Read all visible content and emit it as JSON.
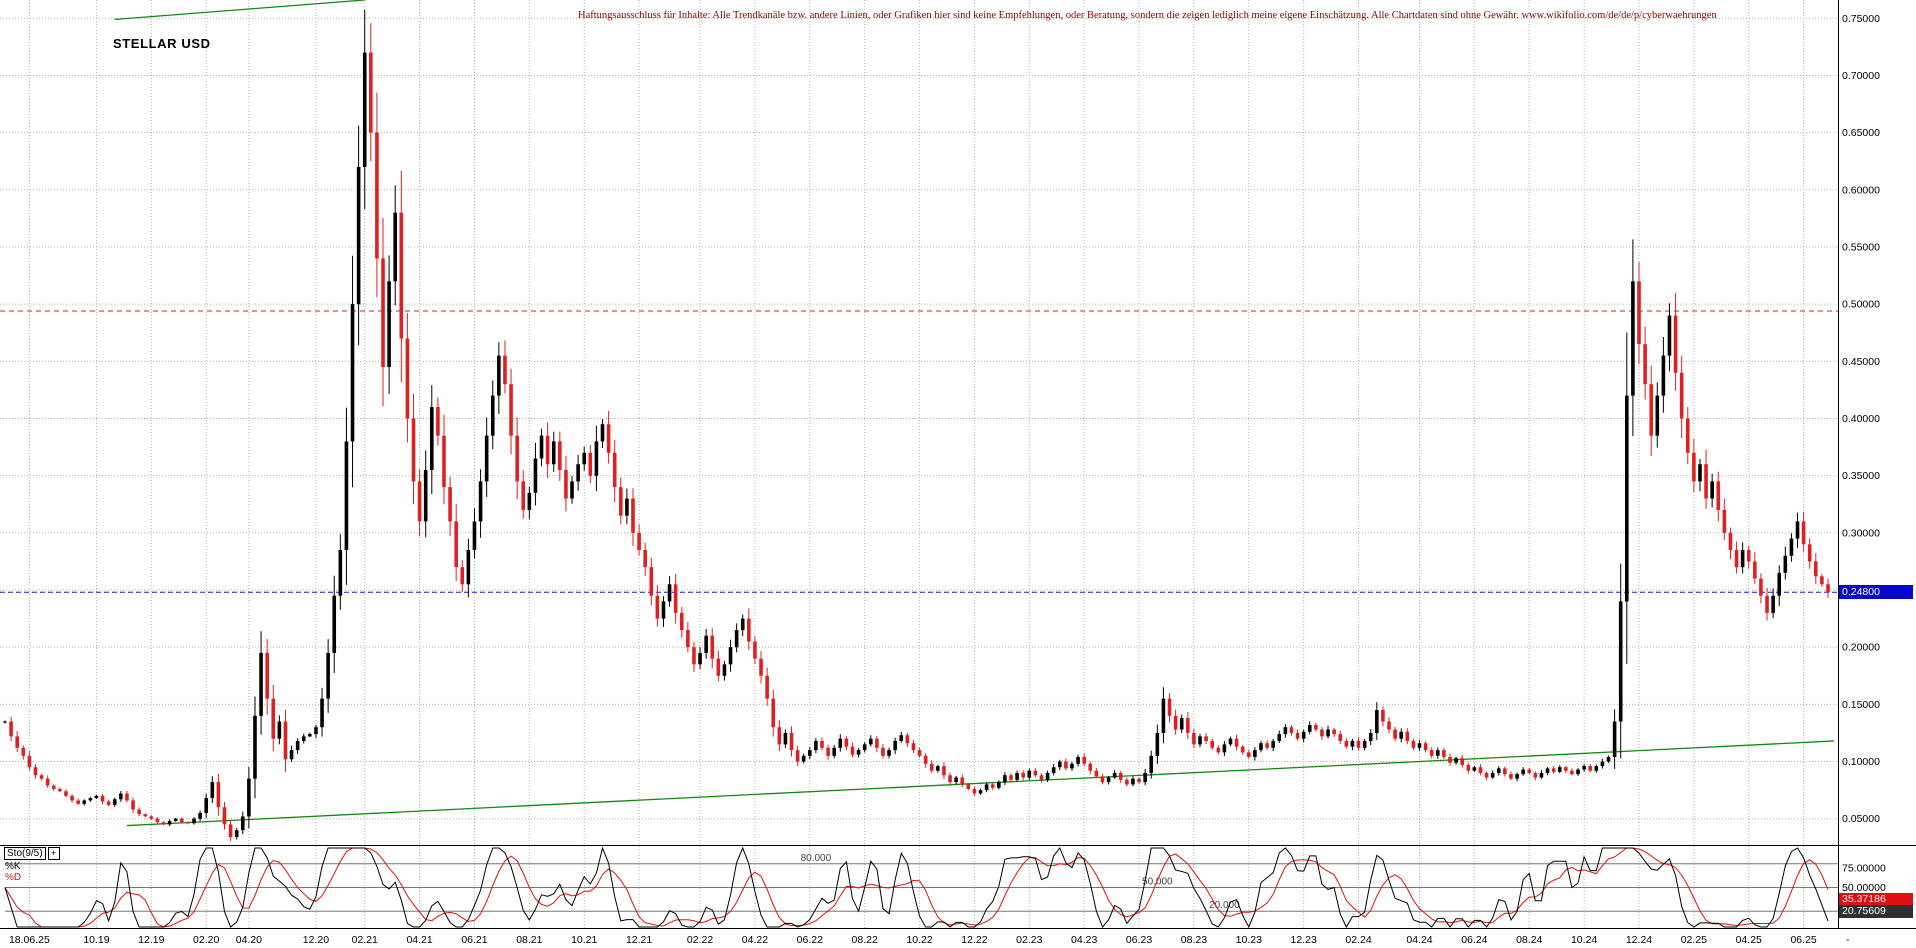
{
  "header": {
    "title": "STELLAR USD",
    "disclaimer": "Haftungsausschluss für Inhalte: Alle Trendkanäle bzw. andere Linien, oder Grafiken hier sind keine Empfehlungen, oder Beratung, sondern die zeigen lediglich meine eigene Einschätzung. Alle Chartdaten sind ohne Gewähr. www.wikifolio.com/de/de/p/cyberwaehrungen"
  },
  "colors": {
    "up_candle": "#000000",
    "down_candle": "#e02020",
    "grid": "#b3b3a6",
    "support_line": "#128912",
    "resistance_line": "#128912",
    "current_price_line": "#1515cc",
    "alert_line": "#c23000",
    "price_badge_bg": "#0808cc",
    "k_line": "#000000",
    "d_line": "#e01010",
    "k_badge_bg": "#303030",
    "d_badge_bg": "#e01010",
    "disclaimer_text": "#8b0000",
    "level_line": "#777777",
    "level_label": "#444444"
  },
  "chart_data": {
    "type": "candlestick",
    "title": "STELLAR USD",
    "y_range": [
      0.027,
      0.766
    ],
    "y_ticks": [
      {
        "value": 0.75,
        "label": "0.75000"
      },
      {
        "value": 0.7,
        "label": "0.70000"
      },
      {
        "value": 0.65,
        "label": "0.65000"
      },
      {
        "value": 0.6,
        "label": "0.60000"
      },
      {
        "value": 0.55,
        "label": "0.55000"
      },
      {
        "value": 0.5,
        "label": "0.50000"
      },
      {
        "value": 0.45,
        "label": "0.45000"
      },
      {
        "value": 0.4,
        "label": "0.40000"
      },
      {
        "value": 0.35,
        "label": "0.35000"
      },
      {
        "value": 0.3,
        "label": "0.30000"
      },
      {
        "value": 0.25,
        "label": "0.25000"
      },
      {
        "value": 0.2,
        "label": "0.20000"
      },
      {
        "value": 0.15,
        "label": "0.15000"
      },
      {
        "value": 0.1,
        "label": "0.10000"
      },
      {
        "value": 0.05,
        "label": "0.05000"
      }
    ],
    "x_ticks": [
      {
        "idx": 4,
        "label": "18.06.25"
      },
      {
        "idx": 15,
        "label": "10.19"
      },
      {
        "idx": 24,
        "label": "12.19"
      },
      {
        "idx": 33,
        "label": "02.20"
      },
      {
        "idx": 40,
        "label": "04.20"
      },
      {
        "idx": 51,
        "label": "12.20"
      },
      {
        "idx": 59,
        "label": "02.21"
      },
      {
        "idx": 68,
        "label": "04.21"
      },
      {
        "idx": 77,
        "label": "06.21"
      },
      {
        "idx": 86,
        "label": "08.21"
      },
      {
        "idx": 95,
        "label": "10.21"
      },
      {
        "idx": 104,
        "label": "12.21"
      },
      {
        "idx": 114,
        "label": "02.22"
      },
      {
        "idx": 123,
        "label": "04.22"
      },
      {
        "idx": 132,
        "label": "06.22"
      },
      {
        "idx": 141,
        "label": "08.22"
      },
      {
        "idx": 150,
        "label": "10.22"
      },
      {
        "idx": 159,
        "label": "12.22"
      },
      {
        "idx": 168,
        "label": "02.23"
      },
      {
        "idx": 177,
        "label": "04.23"
      },
      {
        "idx": 186,
        "label": "06.23"
      },
      {
        "idx": 195,
        "label": "08.23"
      },
      {
        "idx": 204,
        "label": "10.23"
      },
      {
        "idx": 213,
        "label": "12.23"
      },
      {
        "idx": 222,
        "label": "02.24"
      },
      {
        "idx": 232,
        "label": "04.24"
      },
      {
        "idx": 241,
        "label": "06.24"
      },
      {
        "idx": 250,
        "label": "08.24"
      },
      {
        "idx": 259,
        "label": "10.24"
      },
      {
        "idx": 268,
        "label": "12.24"
      },
      {
        "idx": 277,
        "label": "02.25"
      },
      {
        "idx": 286,
        "label": "04.25"
      },
      {
        "idx": 295,
        "label": "06.25"
      }
    ],
    "trailing_x_label": "-",
    "closes": [
      0.135,
      0.122,
      0.112,
      0.105,
      0.095,
      0.088,
      0.085,
      0.079,
      0.076,
      0.074,
      0.07,
      0.066,
      0.063,
      0.066,
      0.068,
      0.07,
      0.065,
      0.062,
      0.067,
      0.072,
      0.066,
      0.058,
      0.054,
      0.052,
      0.05,
      0.047,
      0.045,
      0.048,
      0.05,
      0.047,
      0.046,
      0.05,
      0.055,
      0.068,
      0.082,
      0.06,
      0.045,
      0.034,
      0.04,
      0.052,
      0.085,
      0.14,
      0.195,
      0.155,
      0.12,
      0.135,
      0.102,
      0.11,
      0.118,
      0.122,
      0.124,
      0.13,
      0.155,
      0.195,
      0.245,
      0.285,
      0.38,
      0.5,
      0.62,
      0.72,
      0.65,
      0.54,
      0.445,
      0.52,
      0.58,
      0.47,
      0.4,
      0.345,
      0.31,
      0.355,
      0.41,
      0.385,
      0.34,
      0.31,
      0.27,
      0.255,
      0.285,
      0.31,
      0.345,
      0.385,
      0.42,
      0.455,
      0.43,
      0.385,
      0.345,
      0.32,
      0.335,
      0.365,
      0.385,
      0.36,
      0.38,
      0.355,
      0.33,
      0.345,
      0.36,
      0.37,
      0.35,
      0.38,
      0.395,
      0.37,
      0.34,
      0.315,
      0.33,
      0.3,
      0.285,
      0.27,
      0.245,
      0.225,
      0.24,
      0.255,
      0.23,
      0.215,
      0.2,
      0.185,
      0.195,
      0.21,
      0.19,
      0.175,
      0.185,
      0.2,
      0.215,
      0.225,
      0.205,
      0.19,
      0.175,
      0.155,
      0.13,
      0.115,
      0.125,
      0.11,
      0.1,
      0.105,
      0.11,
      0.118,
      0.112,
      0.105,
      0.112,
      0.12,
      0.113,
      0.106,
      0.11,
      0.115,
      0.12,
      0.112,
      0.105,
      0.11,
      0.118,
      0.123,
      0.116,
      0.11,
      0.105,
      0.098,
      0.092,
      0.096,
      0.088,
      0.082,
      0.086,
      0.08,
      0.076,
      0.072,
      0.075,
      0.08,
      0.077,
      0.082,
      0.088,
      0.084,
      0.09,
      0.086,
      0.092,
      0.088,
      0.084,
      0.09,
      0.095,
      0.1,
      0.094,
      0.098,
      0.104,
      0.098,
      0.092,
      0.087,
      0.082,
      0.086,
      0.09,
      0.084,
      0.08,
      0.085,
      0.082,
      0.09,
      0.105,
      0.125,
      0.155,
      0.14,
      0.128,
      0.138,
      0.125,
      0.115,
      0.122,
      0.118,
      0.112,
      0.108,
      0.115,
      0.12,
      0.113,
      0.108,
      0.104,
      0.11,
      0.116,
      0.112,
      0.118,
      0.124,
      0.13,
      0.125,
      0.12,
      0.126,
      0.132,
      0.128,
      0.122,
      0.128,
      0.124,
      0.118,
      0.113,
      0.118,
      0.112,
      0.118,
      0.125,
      0.145,
      0.135,
      0.128,
      0.12,
      0.126,
      0.118,
      0.112,
      0.116,
      0.11,
      0.105,
      0.11,
      0.104,
      0.099,
      0.103,
      0.097,
      0.092,
      0.095,
      0.09,
      0.086,
      0.09,
      0.094,
      0.089,
      0.085,
      0.089,
      0.093,
      0.09,
      0.086,
      0.09,
      0.094,
      0.091,
      0.095,
      0.092,
      0.089,
      0.093,
      0.096,
      0.092,
      0.096,
      0.1,
      0.104,
      0.135,
      0.24,
      0.42,
      0.52,
      0.465,
      0.43,
      0.385,
      0.42,
      0.455,
      0.49,
      0.44,
      0.4,
      0.37,
      0.345,
      0.36,
      0.33,
      0.345,
      0.32,
      0.3,
      0.285,
      0.27,
      0.285,
      0.275,
      0.26,
      0.245,
      0.23,
      0.245,
      0.265,
      0.28,
      0.295,
      0.31,
      0.29,
      0.275,
      0.262,
      0.255,
      0.248
    ],
    "current_price": {
      "value": 0.248,
      "label": "0.24800"
    },
    "alert_level": 0.494,
    "trendlines": {
      "support": {
        "from_idx": 20,
        "from_price": 0.044,
        "to_idx": 300,
        "to_price": 0.118
      },
      "resistance": {
        "from_idx": 18,
        "from_price": 0.749,
        "to_idx": 59,
        "to_price": 0.766
      }
    },
    "stochastic": {
      "params_label": "Sto(9/5)",
      "plus_button": "+",
      "k_label": "%K",
      "d_label": "%D",
      "k_period": 9,
      "d_smoothing": 5,
      "range": [
        0,
        100
      ],
      "levels": [
        {
          "value": 80,
          "label": "80.000",
          "label_idx": 133
        },
        {
          "value": 50,
          "label": "50.000",
          "label_idx": 189
        },
        {
          "value": 20,
          "label": "20.000",
          "label_idx": 200
        }
      ],
      "axis_labels": [
        {
          "value": 75,
          "label": "75.00000"
        },
        {
          "value": 50,
          "label": "50.00000"
        }
      ],
      "d_value": "35.37186",
      "k_value": "20.75609"
    }
  }
}
